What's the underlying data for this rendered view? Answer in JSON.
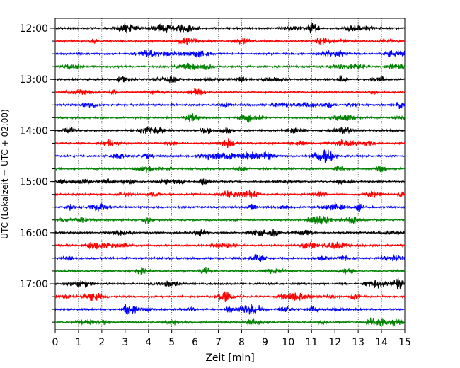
{
  "chart_data": {
    "type": "line",
    "subtype": "helicorder",
    "xlabel": "Zeit  [min]",
    "ylabel": "UTC (Lokalzeit = UTC + 02:00)",
    "xlim": [
      0,
      15
    ],
    "x_ticks": [
      0,
      1,
      2,
      3,
      4,
      5,
      6,
      7,
      8,
      9,
      10,
      11,
      12,
      13,
      14,
      15
    ],
    "y_tick_labels": [
      "12:00",
      "13:00",
      "14:00",
      "15:00",
      "16:00",
      "17:00"
    ],
    "grid": "vertical dotted lines at each minute",
    "trace_minutes": 15,
    "trace_count": 24,
    "colors": [
      "#000000",
      "#ff0000",
      "#0000ff",
      "#008000"
    ],
    "rows": [
      {
        "start": "12:00",
        "color": "#000000"
      },
      {
        "start": "12:15",
        "color": "#ff0000"
      },
      {
        "start": "12:30",
        "color": "#0000ff"
      },
      {
        "start": "12:45",
        "color": "#008000"
      },
      {
        "start": "13:00",
        "color": "#000000"
      },
      {
        "start": "13:15",
        "color": "#ff0000"
      },
      {
        "start": "13:30",
        "color": "#0000ff"
      },
      {
        "start": "13:45",
        "color": "#008000"
      },
      {
        "start": "14:00",
        "color": "#000000"
      },
      {
        "start": "14:15",
        "color": "#ff0000"
      },
      {
        "start": "14:30",
        "color": "#0000ff"
      },
      {
        "start": "14:45",
        "color": "#008000"
      },
      {
        "start": "15:00",
        "color": "#000000"
      },
      {
        "start": "15:15",
        "color": "#ff0000"
      },
      {
        "start": "15:30",
        "color": "#0000ff"
      },
      {
        "start": "15:45",
        "color": "#008000"
      },
      {
        "start": "16:00",
        "color": "#000000"
      },
      {
        "start": "16:15",
        "color": "#ff0000"
      },
      {
        "start": "16:30",
        "color": "#0000ff"
      },
      {
        "start": "16:45",
        "color": "#008000"
      },
      {
        "start": "17:00",
        "color": "#000000"
      },
      {
        "start": "17:15",
        "color": "#ff0000"
      },
      {
        "start": "17:30",
        "color": "#0000ff"
      },
      {
        "start": "17:45",
        "color": "#008000"
      }
    ]
  }
}
